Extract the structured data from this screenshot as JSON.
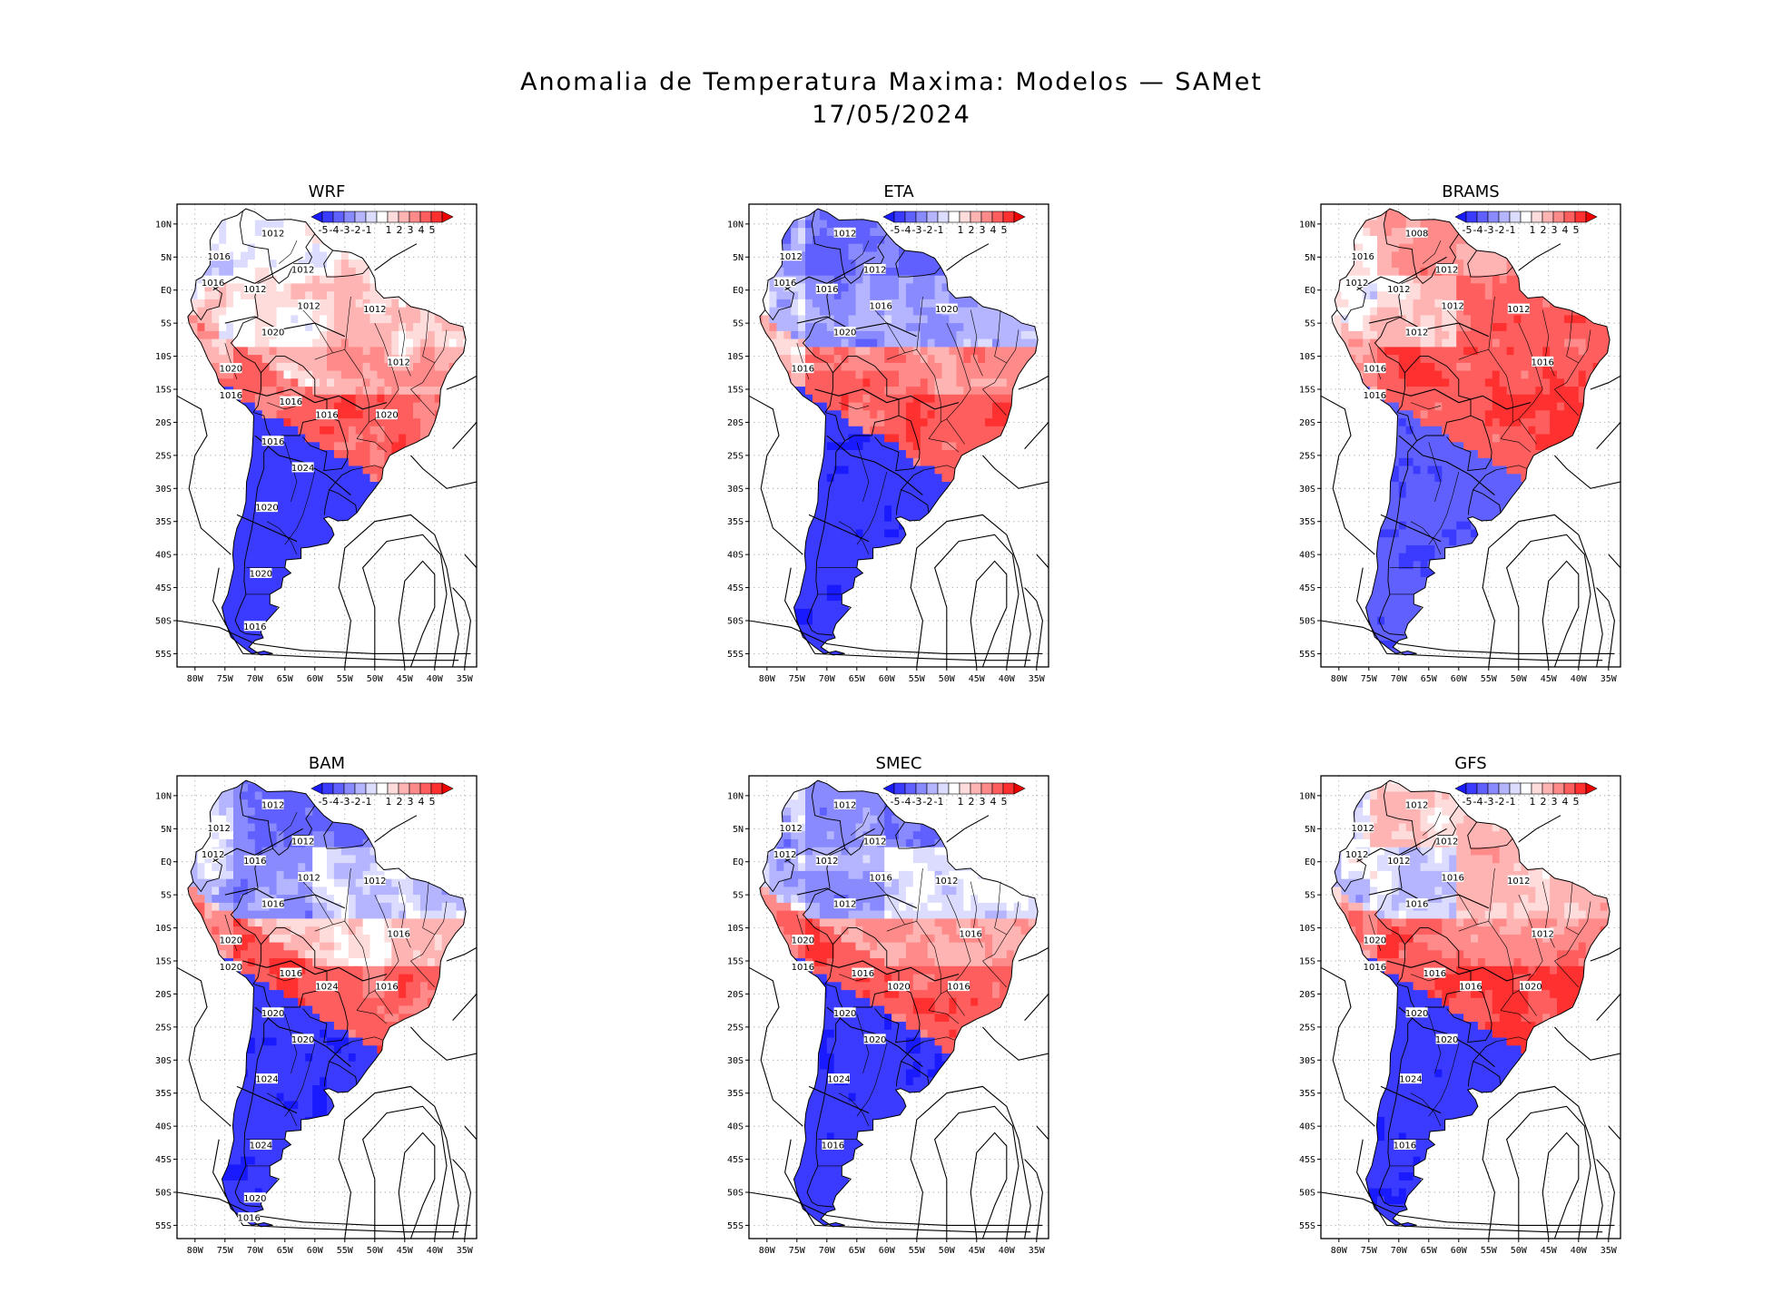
{
  "title": "Anomalia de Temperatura Maxima: Modelos — SAMet",
  "date": "17/05/2024",
  "lat_ticks": [
    "10N",
    "5N",
    "EQ",
    "5S",
    "10S",
    "15S",
    "20S",
    "25S",
    "30S",
    "35S",
    "40S",
    "45S",
    "50S",
    "55S"
  ],
  "lon_ticks": [
    "80W",
    "75W",
    "70W",
    "65W",
    "60W",
    "55W",
    "50W",
    "45W",
    "40W",
    "35W"
  ],
  "colorbar": {
    "labels": [
      "-5",
      "-4",
      "-3",
      "-2",
      "-1",
      "1",
      "2",
      "3",
      "4",
      "5"
    ],
    "colors": [
      "#1a1aff",
      "#3b3bff",
      "#6060ff",
      "#8a8aff",
      "#b4b4ff",
      "#dcdcff",
      "#ffffff",
      "#ffdcdc",
      "#ffb4b4",
      "#ff8a8a",
      "#ff5e5e",
      "#ff3030",
      "#ee0000"
    ]
  },
  "panels": [
    {
      "name": "WRF",
      "labels": [
        "1012",
        "1012",
        "1016",
        "1016",
        "1012",
        "1012",
        "1012",
        "1020",
        "1020",
        "1016",
        "1012",
        "1016",
        "1016",
        "1020",
        "1016",
        "1020",
        "1024",
        "1020",
        "1016"
      ],
      "anom": [
        0.3,
        0.2,
        0.8,
        1.6,
        3.5,
        -4.5
      ],
      "regime": "wrf"
    },
    {
      "name": "ETA",
      "labels": [
        "1012",
        "1012",
        "1012",
        "1016",
        "1016",
        "1016",
        "1020",
        "1020",
        "1016"
      ],
      "anom": [
        -3.2,
        -2.5,
        -1.5,
        2.5,
        3.5,
        -4.8
      ],
      "regime": "eta"
    },
    {
      "name": "BRAMS",
      "labels": [
        "1008",
        "1012",
        "1016",
        "1012",
        "1012",
        "1012",
        "1012",
        "1012",
        "1016",
        "1016",
        "1016"
      ],
      "anom": [
        2.2,
        1.0,
        3.5,
        3.8,
        3.8,
        -3.8
      ],
      "regime": "brams"
    },
    {
      "name": "BAM",
      "labels": [
        "1012",
        "1012",
        "1012",
        "1012",
        "1016",
        "1012",
        "1012",
        "1016",
        "1020",
        "1020",
        "1016",
        "1016",
        "1024",
        "1016",
        "1020",
        "1024",
        "1020",
        "1024",
        "1020",
        "1016"
      ],
      "anom": [
        -3.0,
        -2.5,
        -1.0,
        1.0,
        3.5,
        -4.8
      ],
      "regime": "bam"
    },
    {
      "name": "SMEC",
      "labels": [
        "1012",
        "1012",
        "1012",
        "1012",
        "1012",
        "1016",
        "1012",
        "1012",
        "1020",
        "1016",
        "1016",
        "1016",
        "1020",
        "1016",
        "1020",
        "1024",
        "1020",
        "1016"
      ],
      "anom": [
        -2.5,
        -2.0,
        -0.5,
        2.0,
        3.5,
        -4.8
      ],
      "regime": "smec"
    },
    {
      "name": "GFS",
      "labels": [
        "1012",
        "1012",
        "1012",
        "1012",
        "1012",
        "1016",
        "1012",
        "1016",
        "1020",
        "1016",
        "1012",
        "1016",
        "1016",
        "1020",
        "1020",
        "1024",
        "1020",
        "1016"
      ],
      "anom": [
        0.8,
        -1.0,
        1.5,
        2.5,
        3.8,
        -4.8
      ],
      "regime": "gfs"
    }
  ]
}
